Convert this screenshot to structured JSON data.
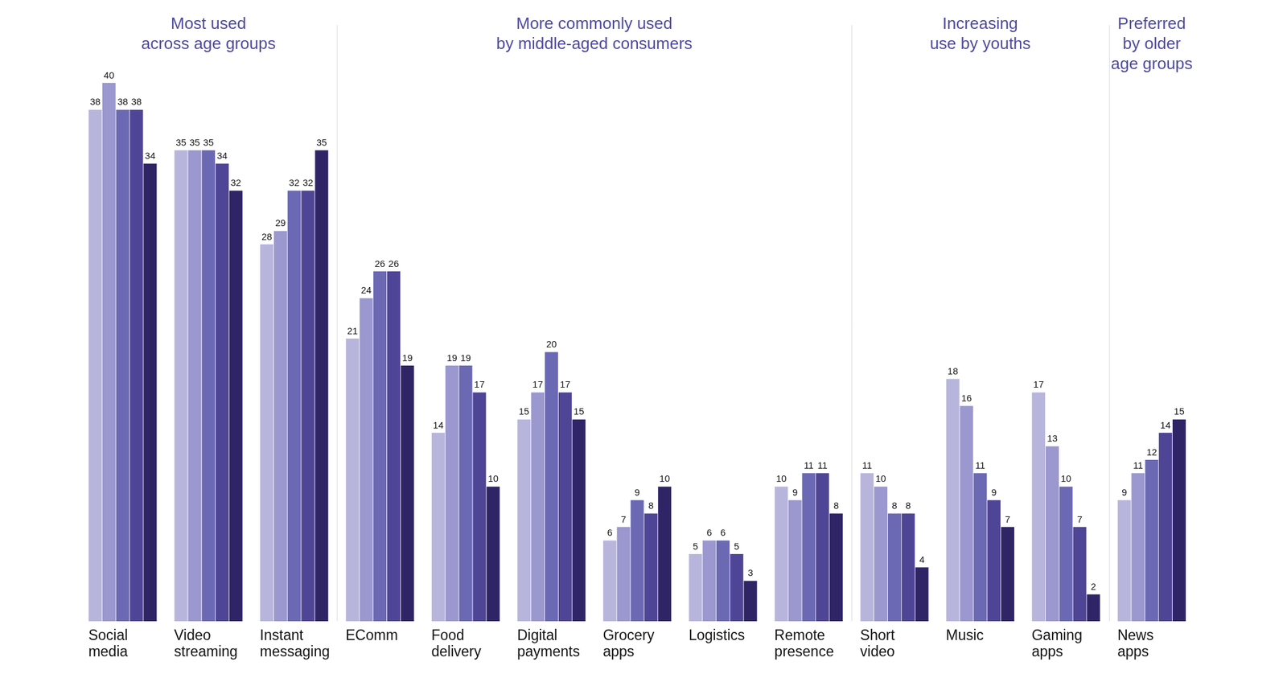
{
  "chart_data": {
    "type": "bar",
    "categories": [
      "Social media",
      "Video streaming",
      "Instant messaging",
      "EComm",
      "Food delivery",
      "Digital payments",
      "Grocery apps",
      "Logistics",
      "Remote presence",
      "Short video",
      "Music",
      "Gaming apps",
      "News apps"
    ],
    "series": [
      {
        "color": "#b8b5dd",
        "values": [
          38,
          35,
          28,
          21,
          14,
          15,
          6,
          5,
          10,
          11,
          18,
          17,
          9
        ]
      },
      {
        "color": "#9b97cf",
        "values": [
          40,
          35,
          29,
          24,
          19,
          17,
          7,
          6,
          9,
          10,
          16,
          13,
          11
        ]
      },
      {
        "color": "#6b69b3",
        "values": [
          38,
          35,
          32,
          26,
          19,
          20,
          9,
          6,
          11,
          8,
          11,
          10,
          12
        ]
      },
      {
        "color": "#4f4596",
        "values": [
          38,
          34,
          32,
          26,
          17,
          17,
          8,
          5,
          11,
          8,
          9,
          7,
          14
        ]
      },
      {
        "color": "#2f2566",
        "values": [
          34,
          32,
          35,
          19,
          10,
          15,
          10,
          3,
          8,
          4,
          7,
          2,
          15
        ]
      }
    ],
    "ylim": [
      0,
      40
    ],
    "grid": false,
    "data_labels": true,
    "tick_labels": "x",
    "groups": [
      {
        "title": [
          "Most used",
          "across age groups"
        ],
        "categories": [
          "Social media",
          "Video streaming",
          "Instant messaging"
        ]
      },
      {
        "title": [
          "More commonly used",
          "by middle-aged consumers"
        ],
        "categories": [
          "EComm",
          "Food delivery",
          "Digital payments",
          "Grocery apps",
          "Logistics",
          "Remote presence"
        ]
      },
      {
        "title": [
          "Increasing",
          "use by youths"
        ],
        "categories": [
          "Short video",
          "Music",
          "Gaming apps"
        ]
      },
      {
        "title": [
          "Preferred",
          "by older",
          "age groups"
        ],
        "categories": [
          "News apps"
        ]
      }
    ]
  }
}
